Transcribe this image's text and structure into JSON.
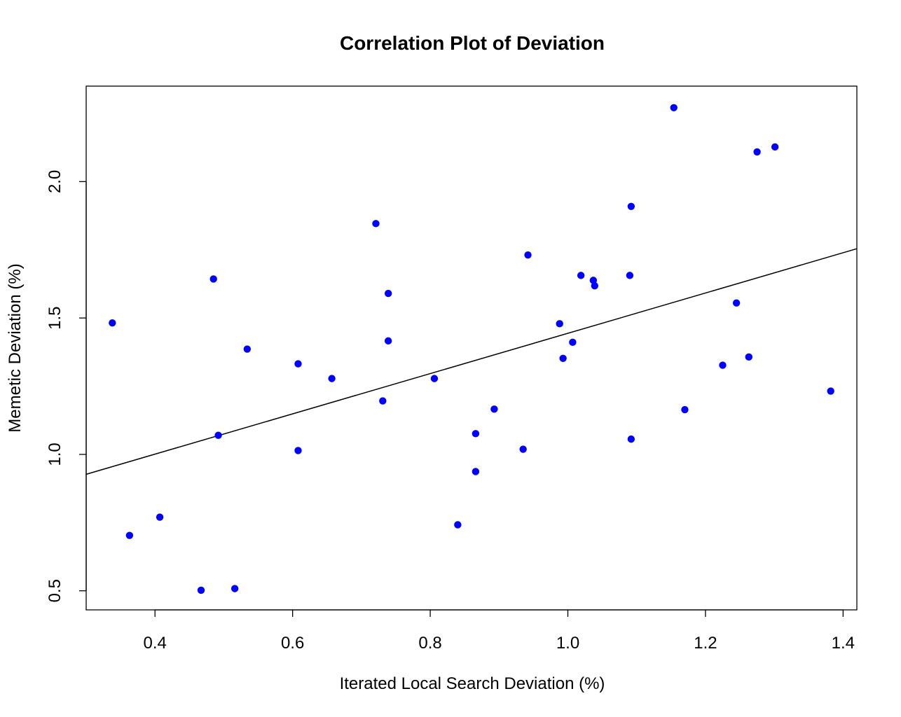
{
  "chart_data": {
    "type": "scatter",
    "title": "Correlation Plot of Deviation",
    "xlabel": "Iterated Local Search Deviation (%)",
    "ylabel": "Memetic Deviation (%)",
    "xlim": [
      0.3,
      1.42
    ],
    "ylim": [
      0.43,
      2.35
    ],
    "xticks": [
      "0.4",
      "0.6",
      "0.8",
      "1.0",
      "1.2",
      "1.4"
    ],
    "yticks": [
      "0.5",
      "1.0",
      "1.5",
      "2.0"
    ],
    "grid": false,
    "point_color": "#0000ff",
    "line_color": "#000000",
    "points": [
      {
        "x": 0.338,
        "y": 1.482
      },
      {
        "x": 0.363,
        "y": 0.703
      },
      {
        "x": 0.407,
        "y": 0.77
      },
      {
        "x": 0.467,
        "y": 0.502
      },
      {
        "x": 0.485,
        "y": 1.643
      },
      {
        "x": 0.492,
        "y": 1.07
      },
      {
        "x": 0.516,
        "y": 0.508
      },
      {
        "x": 0.534,
        "y": 1.386
      },
      {
        "x": 0.608,
        "y": 1.332
      },
      {
        "x": 0.608,
        "y": 1.014
      },
      {
        "x": 0.657,
        "y": 1.278
      },
      {
        "x": 0.721,
        "y": 1.846
      },
      {
        "x": 0.731,
        "y": 1.196
      },
      {
        "x": 0.739,
        "y": 1.59
      },
      {
        "x": 0.739,
        "y": 1.416
      },
      {
        "x": 0.806,
        "y": 1.278
      },
      {
        "x": 0.84,
        "y": 0.742
      },
      {
        "x": 0.866,
        "y": 1.076
      },
      {
        "x": 0.866,
        "y": 0.937
      },
      {
        "x": 0.893,
        "y": 1.166
      },
      {
        "x": 0.935,
        "y": 1.019
      },
      {
        "x": 0.942,
        "y": 1.731
      },
      {
        "x": 0.988,
        "y": 1.479
      },
      {
        "x": 0.993,
        "y": 1.352
      },
      {
        "x": 1.007,
        "y": 1.411
      },
      {
        "x": 1.019,
        "y": 1.656
      },
      {
        "x": 1.037,
        "y": 1.638
      },
      {
        "x": 1.039,
        "y": 1.618
      },
      {
        "x": 1.09,
        "y": 1.656
      },
      {
        "x": 1.092,
        "y": 1.909
      },
      {
        "x": 1.092,
        "y": 1.056
      },
      {
        "x": 1.154,
        "y": 2.271
      },
      {
        "x": 1.17,
        "y": 1.164
      },
      {
        "x": 1.225,
        "y": 1.327
      },
      {
        "x": 1.245,
        "y": 1.555
      },
      {
        "x": 1.263,
        "y": 1.357
      },
      {
        "x": 1.275,
        "y": 2.109
      },
      {
        "x": 1.301,
        "y": 2.127
      },
      {
        "x": 1.382,
        "y": 1.232
      }
    ],
    "regression_line": {
      "x": [
        0.3,
        1.42
      ],
      "y": [
        0.927,
        1.754
      ]
    }
  }
}
